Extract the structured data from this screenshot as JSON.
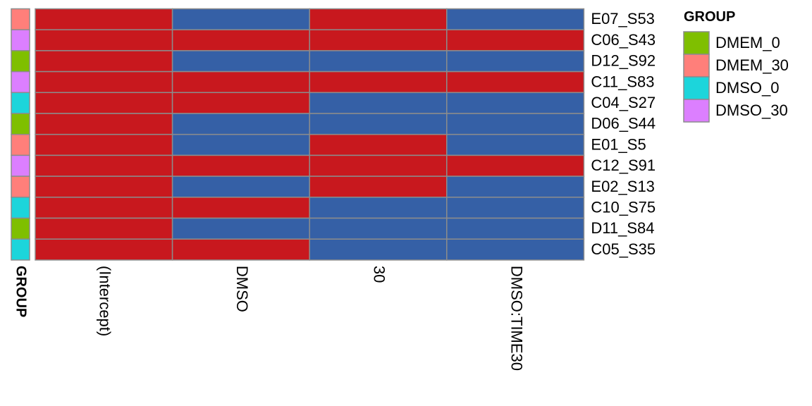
{
  "chart_data": {
    "type": "heatmap",
    "title": "",
    "columns": [
      "(Intercept)",
      "DMSO",
      "30",
      "DMSO:TIME30"
    ],
    "rows": [
      "E07_S53",
      "C06_S43",
      "D12_S92",
      "C11_S83",
      "C04_S27",
      "D06_S44",
      "E01_S5",
      "C12_S91",
      "E02_S13",
      "C10_S75",
      "D11_S84",
      "C05_S35"
    ],
    "row_groups": [
      "DMEM_30",
      "DMSO_30",
      "DMEM_0",
      "DMSO_30",
      "DMSO_0",
      "DMEM_0",
      "DMEM_30",
      "DMSO_30",
      "DMEM_30",
      "DMSO_0",
      "DMEM_0",
      "DMSO_0"
    ],
    "values": [
      [
        1,
        0,
        1,
        0
      ],
      [
        1,
        1,
        1,
        1
      ],
      [
        1,
        0,
        0,
        0
      ],
      [
        1,
        1,
        1,
        1
      ],
      [
        1,
        1,
        0,
        0
      ],
      [
        1,
        0,
        0,
        0
      ],
      [
        1,
        0,
        1,
        0
      ],
      [
        1,
        1,
        1,
        1
      ],
      [
        1,
        0,
        1,
        0
      ],
      [
        1,
        1,
        0,
        0
      ],
      [
        1,
        0,
        0,
        0
      ],
      [
        1,
        1,
        0,
        0
      ]
    ],
    "value_colors": {
      "1": "#C8181E",
      "0": "#3560A6"
    },
    "annotation_label": "GROUP",
    "legend": {
      "title": "GROUP",
      "position": "right",
      "entries": [
        {
          "label": "DMEM_0",
          "color": "#7FBF00"
        },
        {
          "label": "DMEM_30",
          "color": "#FF7F7A"
        },
        {
          "label": "DMSO_0",
          "color": "#1CD5DB"
        },
        {
          "label": "DMSO_30",
          "color": "#DC7FFF"
        }
      ]
    },
    "grid": true,
    "grid_color": "#8C8C8C"
  }
}
